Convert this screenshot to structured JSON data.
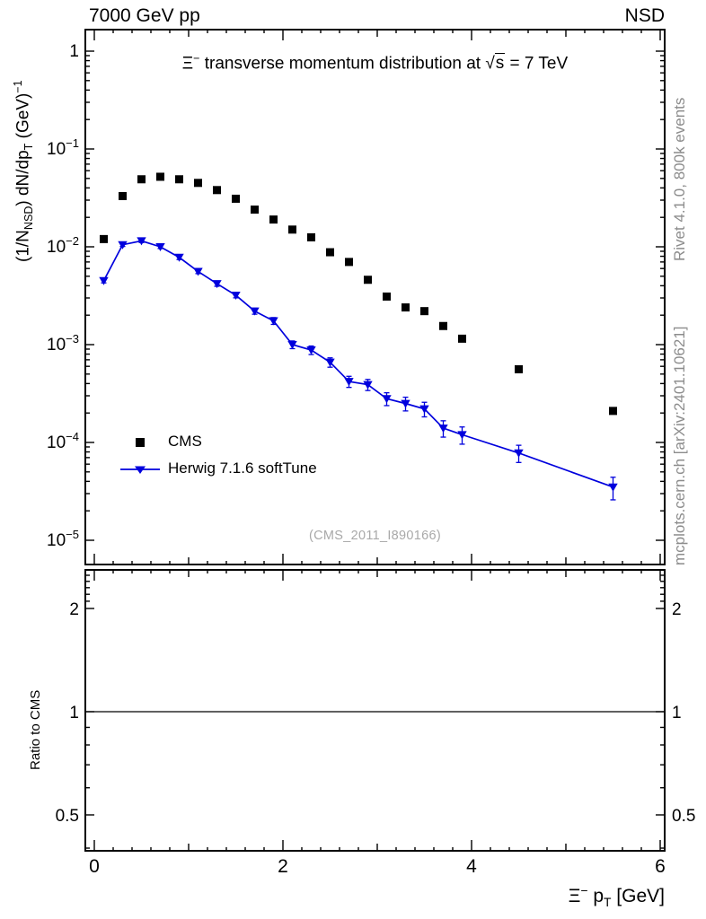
{
  "header": {
    "left": "7000 GeV pp",
    "right": "NSD"
  },
  "title": {
    "xi": "Ξ",
    "xi_sup": "−",
    "mid": " transverse momentum distribution at ",
    "sqrt_sign": "√",
    "sqrt_arg": "s",
    "tail": " = 7 TeV"
  },
  "watermark": "(CMS_2011_I890166)",
  "side_texts": {
    "top_right": "Rivet 4.1.0,  800k events",
    "bottom_right": "mcplots.cern.ch [arXiv:2401.10621]"
  },
  "axes": {
    "ylabel": {
      "a": "(1/N",
      "a_sub": "NSD",
      "b": ") dN/dp",
      "b_sub": "T",
      "c": " (GeV)",
      "c_sup": "−1"
    },
    "xlabel": {
      "xi": "Ξ",
      "xi_sup": "−",
      "p": " p",
      "sub": "T",
      "rest": " [GeV]"
    },
    "ratio_ylabel": "Ratio to CMS"
  },
  "legend": [
    {
      "label": "CMS",
      "marker": "square",
      "color": "#000000"
    },
    {
      "label": "Herwig 7.1.6 softTune",
      "marker": "triangle-line",
      "color": "#0000dd"
    }
  ],
  "chart_data": {
    "type": "scatter",
    "title": "Xi- transverse momentum distribution at sqrt(s) = 7 TeV",
    "xlabel": "Xi- pT [GeV]",
    "ylabel": "(1/N_NSD) dN/dpT (GeV)^-1",
    "ratio_label": "Ratio to CMS",
    "x_log": false,
    "y_log": true,
    "xlim": [
      -0.095,
      6.05
    ],
    "ylim": [
      5.6e-06,
      1.66
    ],
    "ratio_lim": [
      0.39,
      2.58
    ],
    "x_ticks_major": [
      0,
      2,
      4,
      6
    ],
    "x_ticks_medium": [
      1,
      3,
      5
    ],
    "x_minor_step": 0.2,
    "main_y_ticks": [
      1,
      0.1,
      0.01,
      0.001,
      0.0001,
      1e-05
    ],
    "ratio_y_ticks": [
      2,
      1,
      0.5
    ],
    "ratio_y_minor": [
      0.4,
      0.6,
      0.7,
      0.8,
      0.9,
      2.1,
      2.2,
      2.3,
      2.4,
      2.5
    ],
    "ratio_line_y": 1,
    "series": [
      {
        "name": "CMS",
        "color": "#000000",
        "marker": "square",
        "line": false,
        "x": [
          0.1,
          0.3,
          0.5,
          0.7,
          0.9,
          1.1,
          1.3,
          1.5,
          1.7,
          1.9,
          2.1,
          2.3,
          2.5,
          2.7,
          2.9,
          3.1,
          3.3,
          3.5,
          3.7,
          3.9,
          4.5,
          5.5
        ],
        "y": [
          0.012,
          0.033,
          0.049,
          0.052,
          0.049,
          0.045,
          0.038,
          0.031,
          0.024,
          0.019,
          0.015,
          0.0125,
          0.0088,
          0.007,
          0.0046,
          0.0031,
          0.0024,
          0.0022,
          0.00155,
          0.00115,
          0.00056,
          0.00021
        ],
        "yerr_rel": [
          0.04,
          0.04,
          0.04,
          0.04,
          0.04,
          0.04,
          0.04,
          0.04,
          0.04,
          0.04,
          0.04,
          0.04,
          0.04,
          0.04,
          0.04,
          0.04,
          0.04,
          0.04,
          0.04,
          0.04,
          0.04,
          0.04
        ]
      },
      {
        "name": "Herwig 7.1.6 softTune",
        "color": "#0000dd",
        "marker": "triangle-down",
        "line": true,
        "x": [
          0.1,
          0.3,
          0.5,
          0.7,
          0.9,
          1.1,
          1.3,
          1.5,
          1.7,
          1.9,
          2.1,
          2.3,
          2.5,
          2.7,
          2.9,
          3.1,
          3.3,
          3.5,
          3.7,
          3.9,
          4.5,
          5.5
        ],
        "y": [
          0.0045,
          0.0105,
          0.0115,
          0.01,
          0.0078,
          0.0056,
          0.0042,
          0.0032,
          0.0022,
          0.00175,
          0.001,
          0.00088,
          0.00066,
          0.00042,
          0.00039,
          0.00028,
          0.00025,
          0.00022,
          0.00014,
          0.00012,
          7.8e-05,
          3.5e-05
        ],
        "yerr_rel": [
          0.05,
          0.04,
          0.04,
          0.04,
          0.05,
          0.05,
          0.06,
          0.06,
          0.07,
          0.08,
          0.09,
          0.1,
          0.11,
          0.13,
          0.13,
          0.15,
          0.16,
          0.17,
          0.19,
          0.2,
          0.2,
          0.26
        ]
      }
    ]
  }
}
